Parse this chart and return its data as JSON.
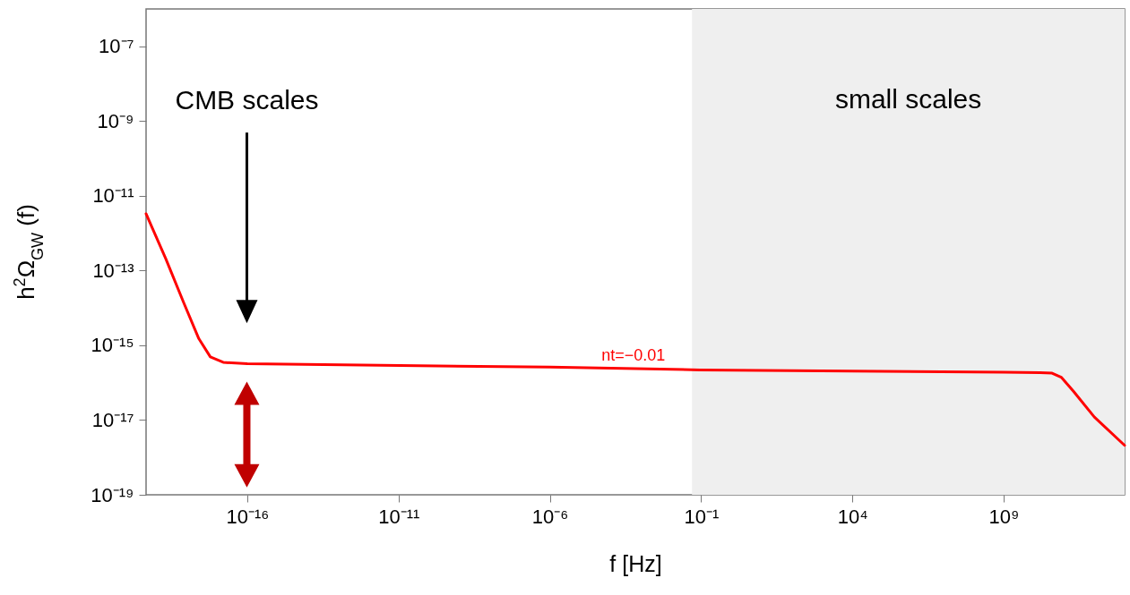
{
  "chart_data": {
    "type": "line",
    "xlabel": "f [Hz]",
    "ylabel": "h$^{2}$Ω$_{GW}$ (f)",
    "log": "xy",
    "grid": false,
    "xlim": [
      4.5e-20,
      10000000000000.0
    ],
    "ylim": [
      1e-19,
      1e-06
    ],
    "xticks": [
      {
        "value": 1e-16,
        "label": "10⁻¹⁶"
      },
      {
        "value": 1e-11,
        "label": "10⁻¹¹"
      },
      {
        "value": 1e-06,
        "label": "10⁻⁶"
      },
      {
        "value": 0.1,
        "label": "10⁻¹"
      },
      {
        "value": 10000.0,
        "label": "10⁴"
      },
      {
        "value": 1000000000.0,
        "label": "10⁹"
      }
    ],
    "yticks": [
      {
        "value": 1e-19,
        "label": "10⁻¹⁹"
      },
      {
        "value": 1e-17,
        "label": "10⁻¹⁷"
      },
      {
        "value": 1e-15,
        "label": "10⁻¹⁵"
      },
      {
        "value": 1e-13,
        "label": "10⁻¹³"
      },
      {
        "value": 1e-11,
        "label": "10⁻¹¹"
      },
      {
        "value": 1e-09,
        "label": "10⁻⁹"
      },
      {
        "value": 1e-07,
        "label": "10⁻⁷"
      }
    ],
    "series": [
      {
        "color": "#ff0000",
        "x": [
          4.5e-20,
          2e-19,
          8e-19,
          2.5e-18,
          6e-18,
          1.6e-17,
          1e-16,
          1e-06,
          0.09,
          1000000000.0,
          16000000000.0,
          40000000000.0,
          80000000000.0,
          200000000000.0,
          1000000000000.0,
          10000000000000.0
        ],
        "values": [
          3.3e-12,
          2.1e-13,
          1.35e-14,
          1.5e-15,
          4.9e-16,
          3.5e-16,
          3.2e-16,
          2.6e-16,
          2.2e-16,
          1.9e-16,
          1.85e-16,
          1.8e-16,
          1.4e-16,
          6e-17,
          1.2e-17,
          2.1e-18
        ]
      }
    ],
    "bands": [
      {
        "axis": "x",
        "from": 0.05,
        "to": 10000000000000.0,
        "label": "small scales",
        "color": "#efefef"
      }
    ],
    "annotations": [
      "CMB scales",
      "nt=−0.01"
    ]
  }
}
